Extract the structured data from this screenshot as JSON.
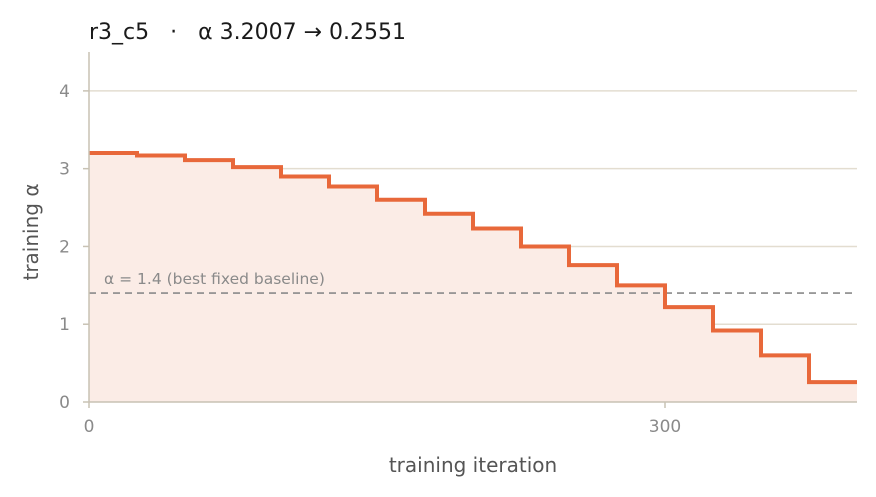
{
  "chart_data": {
    "type": "line",
    "title": "r3_c5   ·   α 3.2007 → 0.2551",
    "xlabel": "training iteration",
    "ylabel": "training α",
    "xlim": [
      0,
      400
    ],
    "ylim": [
      0,
      4.5
    ],
    "x_ticks": [
      0,
      300
    ],
    "x_tick_labels": [
      "0",
      "300"
    ],
    "y_ticks": [
      0,
      1,
      2,
      3,
      4
    ],
    "y_tick_labels": [
      "0",
      "1",
      "2",
      "3",
      "4"
    ],
    "grid": "horizontal",
    "series": [
      {
        "step": "post",
        "x": [
          0,
          25,
          50,
          75,
          100,
          125,
          150,
          175,
          200,
          225,
          250,
          275,
          300,
          325,
          350,
          375,
          400
        ],
        "values": [
          3.2007,
          3.17,
          3.11,
          3.02,
          2.9,
          2.77,
          2.6,
          2.42,
          2.23,
          2.0,
          1.76,
          1.5,
          1.22,
          0.92,
          0.6,
          0.2551,
          0.2551
        ]
      }
    ],
    "reference_line": {
      "y": 1.4,
      "label": "α = 1.4 (best fixed baseline)"
    },
    "colors": {
      "line": "#e8683a",
      "fill": "#fbece6",
      "grid": "#e3ddd0",
      "reference": "#8a8a8a",
      "axis": "#c8c2b4"
    }
  }
}
